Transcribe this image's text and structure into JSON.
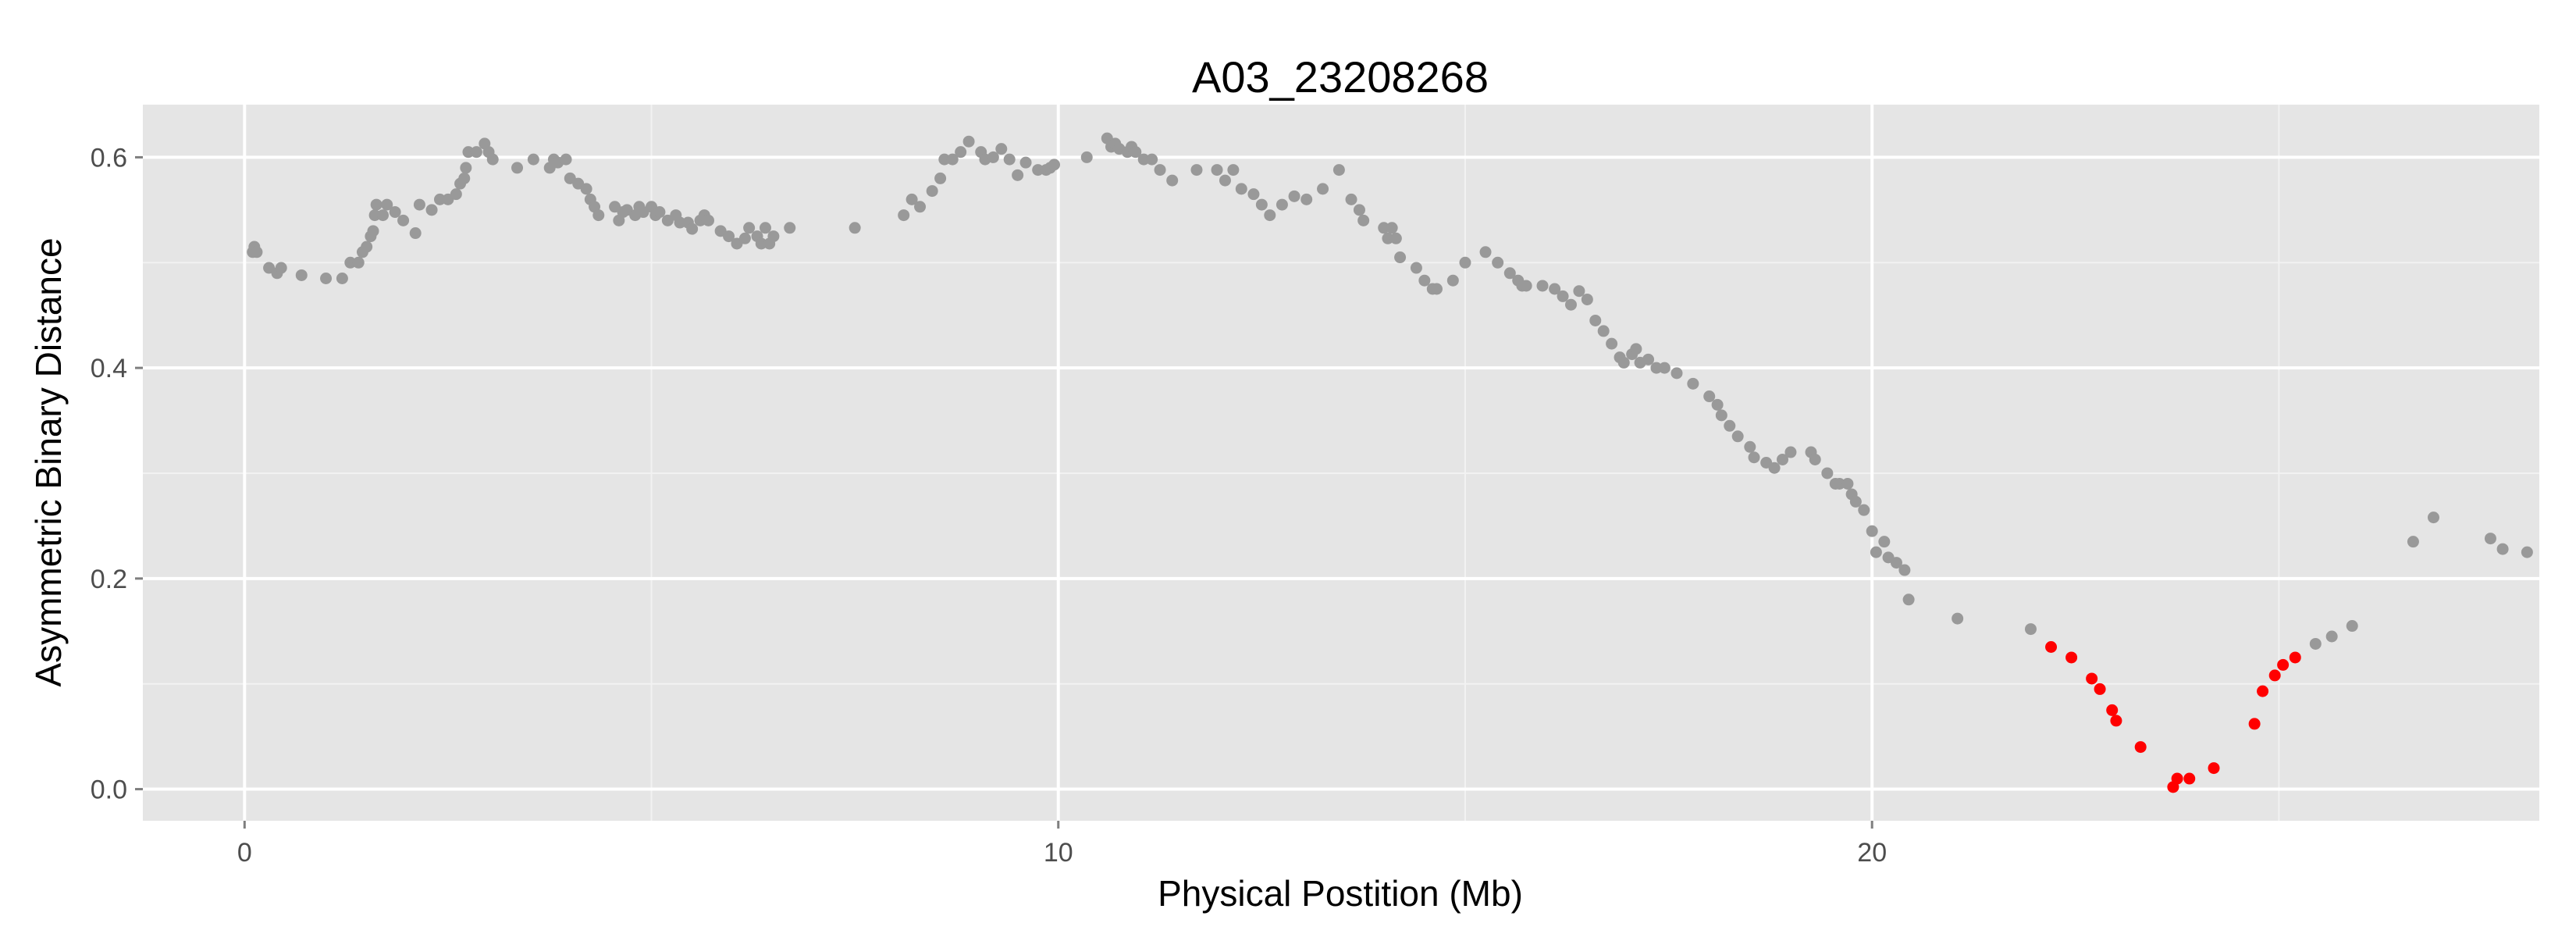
{
  "chart_data": {
    "type": "scatter",
    "title": "A03_23208268",
    "xlabel": "Physical Postition (Mb)",
    "ylabel": "Asymmetric Binary Distance",
    "xlim": [
      -1.25,
      28.2
    ],
    "ylim": [
      -0.03,
      0.65
    ],
    "x_ticks": [
      0,
      10,
      20
    ],
    "x_tick_labels": [
      "0",
      "10",
      "20"
    ],
    "y_ticks": [
      0.0,
      0.2,
      0.4,
      0.6
    ],
    "y_tick_labels": [
      "0.0",
      "0.2",
      "0.4",
      "0.6"
    ],
    "grid": true,
    "legend": "none",
    "colors": {
      "panel_background": "#e5e5e5",
      "grid_major": "#ffffff",
      "grid_minor": "#f2f2f2",
      "series_gray": "#999999",
      "series_red": "#ff0000"
    },
    "series": [
      {
        "color": "#999999",
        "points": [
          [
            0.1,
            0.51
          ],
          [
            0.12,
            0.515
          ],
          [
            0.15,
            0.51
          ],
          [
            0.3,
            0.495
          ],
          [
            0.4,
            0.49
          ],
          [
            0.45,
            0.495
          ],
          [
            0.7,
            0.488
          ],
          [
            1.0,
            0.485
          ],
          [
            1.2,
            0.485
          ],
          [
            1.3,
            0.5
          ],
          [
            1.4,
            0.5
          ],
          [
            1.45,
            0.51
          ],
          [
            1.5,
            0.515
          ],
          [
            1.55,
            0.525
          ],
          [
            1.58,
            0.53
          ],
          [
            1.6,
            0.545
          ],
          [
            1.62,
            0.555
          ],
          [
            1.7,
            0.545
          ],
          [
            1.75,
            0.555
          ],
          [
            1.85,
            0.548
          ],
          [
            1.95,
            0.54
          ],
          [
            2.1,
            0.528
          ],
          [
            2.15,
            0.555
          ],
          [
            2.3,
            0.55
          ],
          [
            2.4,
            0.56
          ],
          [
            2.5,
            0.56
          ],
          [
            2.6,
            0.565
          ],
          [
            2.65,
            0.575
          ],
          [
            2.7,
            0.58
          ],
          [
            2.72,
            0.59
          ],
          [
            2.75,
            0.605
          ],
          [
            2.85,
            0.605
          ],
          [
            2.95,
            0.613
          ],
          [
            3.0,
            0.605
          ],
          [
            3.05,
            0.598
          ],
          [
            3.35,
            0.59
          ],
          [
            3.55,
            0.598
          ],
          [
            3.75,
            0.59
          ],
          [
            3.8,
            0.598
          ],
          [
            3.85,
            0.595
          ],
          [
            3.95,
            0.598
          ],
          [
            4.0,
            0.58
          ],
          [
            4.1,
            0.575
          ],
          [
            4.2,
            0.57
          ],
          [
            4.25,
            0.56
          ],
          [
            4.3,
            0.553
          ],
          [
            4.35,
            0.545
          ],
          [
            4.55,
            0.553
          ],
          [
            4.6,
            0.54
          ],
          [
            4.65,
            0.548
          ],
          [
            4.7,
            0.55
          ],
          [
            4.8,
            0.545
          ],
          [
            4.85,
            0.553
          ],
          [
            4.9,
            0.548
          ],
          [
            5.0,
            0.553
          ],
          [
            5.05,
            0.545
          ],
          [
            5.1,
            0.548
          ],
          [
            5.2,
            0.54
          ],
          [
            5.3,
            0.545
          ],
          [
            5.35,
            0.538
          ],
          [
            5.45,
            0.538
          ],
          [
            5.5,
            0.532
          ],
          [
            5.6,
            0.54
          ],
          [
            5.65,
            0.545
          ],
          [
            5.7,
            0.54
          ],
          [
            5.85,
            0.53
          ],
          [
            5.95,
            0.525
          ],
          [
            6.05,
            0.518
          ],
          [
            6.15,
            0.523
          ],
          [
            6.2,
            0.533
          ],
          [
            6.3,
            0.525
          ],
          [
            6.35,
            0.518
          ],
          [
            6.4,
            0.533
          ],
          [
            6.45,
            0.518
          ],
          [
            6.5,
            0.525
          ],
          [
            6.7,
            0.533
          ],
          [
            7.5,
            0.533
          ],
          [
            8.1,
            0.545
          ],
          [
            8.2,
            0.56
          ],
          [
            8.3,
            0.553
          ],
          [
            8.45,
            0.568
          ],
          [
            8.55,
            0.58
          ],
          [
            8.6,
            0.598
          ],
          [
            8.7,
            0.598
          ],
          [
            8.8,
            0.605
          ],
          [
            8.9,
            0.615
          ],
          [
            9.05,
            0.605
          ],
          [
            9.1,
            0.598
          ],
          [
            9.2,
            0.6
          ],
          [
            9.3,
            0.608
          ],
          [
            9.4,
            0.598
          ],
          [
            9.5,
            0.583
          ],
          [
            9.6,
            0.595
          ],
          [
            9.75,
            0.588
          ],
          [
            9.85,
            0.588
          ],
          [
            9.9,
            0.59
          ],
          [
            9.95,
            0.593
          ],
          [
            10.35,
            0.6
          ],
          [
            10.6,
            0.618
          ],
          [
            10.65,
            0.61
          ],
          [
            10.7,
            0.613
          ],
          [
            10.75,
            0.608
          ],
          [
            10.85,
            0.605
          ],
          [
            10.9,
            0.61
          ],
          [
            10.95,
            0.605
          ],
          [
            11.05,
            0.598
          ],
          [
            11.15,
            0.598
          ],
          [
            11.25,
            0.588
          ],
          [
            11.4,
            0.578
          ],
          [
            11.7,
            0.588
          ],
          [
            11.95,
            0.588
          ],
          [
            12.05,
            0.578
          ],
          [
            12.15,
            0.588
          ],
          [
            12.25,
            0.57
          ],
          [
            12.4,
            0.565
          ],
          [
            12.5,
            0.555
          ],
          [
            12.6,
            0.545
          ],
          [
            12.75,
            0.555
          ],
          [
            12.9,
            0.563
          ],
          [
            13.05,
            0.56
          ],
          [
            13.25,
            0.57
          ],
          [
            13.45,
            0.588
          ],
          [
            13.6,
            0.56
          ],
          [
            13.7,
            0.55
          ],
          [
            13.75,
            0.54
          ],
          [
            14.0,
            0.533
          ],
          [
            14.05,
            0.523
          ],
          [
            14.1,
            0.533
          ],
          [
            14.15,
            0.523
          ],
          [
            14.2,
            0.505
          ],
          [
            14.4,
            0.495
          ],
          [
            14.5,
            0.483
          ],
          [
            14.6,
            0.475
          ],
          [
            14.65,
            0.475
          ],
          [
            14.85,
            0.483
          ],
          [
            15.0,
            0.5
          ],
          [
            15.25,
            0.51
          ],
          [
            15.4,
            0.5
          ],
          [
            15.55,
            0.49
          ],
          [
            15.65,
            0.483
          ],
          [
            15.7,
            0.478
          ],
          [
            15.75,
            0.478
          ],
          [
            15.95,
            0.478
          ],
          [
            16.1,
            0.475
          ],
          [
            16.2,
            0.468
          ],
          [
            16.3,
            0.46
          ],
          [
            16.4,
            0.473
          ],
          [
            16.5,
            0.465
          ],
          [
            16.6,
            0.445
          ],
          [
            16.7,
            0.435
          ],
          [
            16.8,
            0.423
          ],
          [
            16.9,
            0.41
          ],
          [
            16.95,
            0.405
          ],
          [
            17.05,
            0.413
          ],
          [
            17.1,
            0.418
          ],
          [
            17.15,
            0.405
          ],
          [
            17.25,
            0.408
          ],
          [
            17.35,
            0.4
          ],
          [
            17.45,
            0.4
          ],
          [
            17.6,
            0.395
          ],
          [
            17.8,
            0.385
          ],
          [
            18.0,
            0.373
          ],
          [
            18.1,
            0.365
          ],
          [
            18.15,
            0.355
          ],
          [
            18.25,
            0.345
          ],
          [
            18.35,
            0.335
          ],
          [
            18.5,
            0.325
          ],
          [
            18.55,
            0.315
          ],
          [
            18.7,
            0.31
          ],
          [
            18.8,
            0.305
          ],
          [
            18.9,
            0.313
          ],
          [
            19.0,
            0.32
          ],
          [
            19.25,
            0.32
          ],
          [
            19.3,
            0.313
          ],
          [
            19.45,
            0.3
          ],
          [
            19.55,
            0.29
          ],
          [
            19.6,
            0.29
          ],
          [
            19.7,
            0.29
          ],
          [
            19.75,
            0.28
          ],
          [
            19.8,
            0.273
          ],
          [
            19.9,
            0.265
          ],
          [
            20.0,
            0.245
          ],
          [
            20.05,
            0.225
          ],
          [
            20.15,
            0.235
          ],
          [
            20.2,
            0.22
          ],
          [
            20.3,
            0.215
          ],
          [
            20.4,
            0.208
          ],
          [
            20.45,
            0.18
          ],
          [
            21.05,
            0.162
          ],
          [
            21.95,
            0.152
          ],
          [
            26.65,
            0.235
          ],
          [
            26.9,
            0.258
          ],
          [
            27.6,
            0.238
          ],
          [
            27.75,
            0.228
          ],
          [
            28.05,
            0.225
          ]
        ]
      },
      {
        "color": "#ff0000",
        "points": [
          [
            22.2,
            0.135
          ],
          [
            22.45,
            0.125
          ],
          [
            22.7,
            0.105
          ],
          [
            22.8,
            0.095
          ],
          [
            22.95,
            0.075
          ],
          [
            23.0,
            0.065
          ],
          [
            23.3,
            0.04
          ],
          [
            23.7,
            0.002
          ],
          [
            23.75,
            0.01
          ],
          [
            23.9,
            0.01
          ],
          [
            24.2,
            0.02
          ],
          [
            24.7,
            0.062
          ],
          [
            24.8,
            0.093
          ],
          [
            24.95,
            0.108
          ],
          [
            25.05,
            0.118
          ],
          [
            25.2,
            0.125
          ]
        ]
      },
      {
        "color": "#999999",
        "points": [
          [
            25.45,
            0.138
          ],
          [
            25.65,
            0.145
          ],
          [
            25.9,
            0.155
          ]
        ]
      }
    ]
  }
}
